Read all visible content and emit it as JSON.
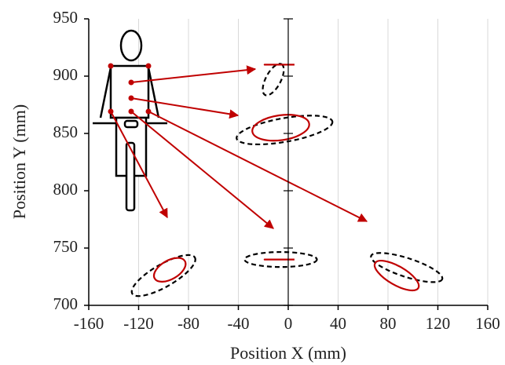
{
  "chart_data": {
    "type": "ellipse",
    "x_label": "Position X (mm)",
    "y_label": "Position Y (mm)",
    "xlim": [
      -160,
      160
    ],
    "xticks": [
      -160,
      -120,
      -80,
      -40,
      0,
      40,
      80,
      120,
      160
    ],
    "ylim": [
      700,
      950
    ],
    "yticks": [
      700,
      750,
      800,
      850,
      900,
      950
    ],
    "grid": true,
    "series": [
      {
        "color": "#000000",
        "dashed": true,
        "ellipses": [
          {
            "cx": -12,
            "cy": 897,
            "rx": 14,
            "ry": 6,
            "angle": 62
          },
          {
            "cx": -3,
            "cy": 853,
            "rx": 39,
            "ry": 9.5,
            "angle": 10
          },
          {
            "cx": -100,
            "cy": 726,
            "rx": 29,
            "ry": 9,
            "angle": 30
          },
          {
            "cx": -6,
            "cy": 740,
            "rx": 29,
            "ry": 6,
            "angle": 0
          },
          {
            "cx": 95,
            "cy": 733,
            "rx": 30,
            "ry": 7.5,
            "angle": -18
          }
        ]
      },
      {
        "color": "#c00000",
        "dashed": false,
        "ellipses": [
          {
            "cx": -7,
            "cy": 910,
            "rx": 12,
            "ry": 0,
            "angle": 0
          },
          {
            "cx": -6,
            "cy": 855,
            "rx": 23,
            "ry": 10,
            "angle": 8
          },
          {
            "cx": -95,
            "cy": 731,
            "rx": 14,
            "ry": 7.5,
            "angle": 30
          },
          {
            "cx": -7,
            "cy": 740,
            "rx": 12,
            "ry": 0,
            "angle": 0
          },
          {
            "cx": 87,
            "cy": 726,
            "rx": 20,
            "ry": 7.5,
            "angle": -30
          }
        ]
      }
    ]
  }
}
